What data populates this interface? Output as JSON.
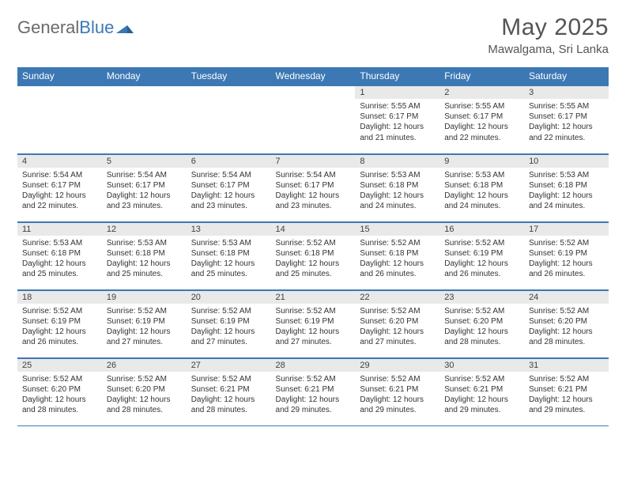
{
  "brand": {
    "part1": "General",
    "part2": "Blue"
  },
  "title": "May 2025",
  "location": "Mawalgama, Sri Lanka",
  "dayHeaders": [
    "Sunday",
    "Monday",
    "Tuesday",
    "Wednesday",
    "Thursday",
    "Friday",
    "Saturday"
  ],
  "colors": {
    "header_bg": "#3c78b4",
    "header_text": "#ffffff",
    "daynum_bg": "#e9e9e9",
    "border": "#3c78b4",
    "text": "#333333"
  },
  "firstWeekday": 4,
  "daysInMonth": 31,
  "days": {
    "1": {
      "sunrise": "5:55 AM",
      "sunset": "6:17 PM",
      "daylight": "12 hours and 21 minutes."
    },
    "2": {
      "sunrise": "5:55 AM",
      "sunset": "6:17 PM",
      "daylight": "12 hours and 22 minutes."
    },
    "3": {
      "sunrise": "5:55 AM",
      "sunset": "6:17 PM",
      "daylight": "12 hours and 22 minutes."
    },
    "4": {
      "sunrise": "5:54 AM",
      "sunset": "6:17 PM",
      "daylight": "12 hours and 22 minutes."
    },
    "5": {
      "sunrise": "5:54 AM",
      "sunset": "6:17 PM",
      "daylight": "12 hours and 23 minutes."
    },
    "6": {
      "sunrise": "5:54 AM",
      "sunset": "6:17 PM",
      "daylight": "12 hours and 23 minutes."
    },
    "7": {
      "sunrise": "5:54 AM",
      "sunset": "6:17 PM",
      "daylight": "12 hours and 23 minutes."
    },
    "8": {
      "sunrise": "5:53 AM",
      "sunset": "6:18 PM",
      "daylight": "12 hours and 24 minutes."
    },
    "9": {
      "sunrise": "5:53 AM",
      "sunset": "6:18 PM",
      "daylight": "12 hours and 24 minutes."
    },
    "10": {
      "sunrise": "5:53 AM",
      "sunset": "6:18 PM",
      "daylight": "12 hours and 24 minutes."
    },
    "11": {
      "sunrise": "5:53 AM",
      "sunset": "6:18 PM",
      "daylight": "12 hours and 25 minutes."
    },
    "12": {
      "sunrise": "5:53 AM",
      "sunset": "6:18 PM",
      "daylight": "12 hours and 25 minutes."
    },
    "13": {
      "sunrise": "5:53 AM",
      "sunset": "6:18 PM",
      "daylight": "12 hours and 25 minutes."
    },
    "14": {
      "sunrise": "5:52 AM",
      "sunset": "6:18 PM",
      "daylight": "12 hours and 25 minutes."
    },
    "15": {
      "sunrise": "5:52 AM",
      "sunset": "6:18 PM",
      "daylight": "12 hours and 26 minutes."
    },
    "16": {
      "sunrise": "5:52 AM",
      "sunset": "6:19 PM",
      "daylight": "12 hours and 26 minutes."
    },
    "17": {
      "sunrise": "5:52 AM",
      "sunset": "6:19 PM",
      "daylight": "12 hours and 26 minutes."
    },
    "18": {
      "sunrise": "5:52 AM",
      "sunset": "6:19 PM",
      "daylight": "12 hours and 26 minutes."
    },
    "19": {
      "sunrise": "5:52 AM",
      "sunset": "6:19 PM",
      "daylight": "12 hours and 27 minutes."
    },
    "20": {
      "sunrise": "5:52 AM",
      "sunset": "6:19 PM",
      "daylight": "12 hours and 27 minutes."
    },
    "21": {
      "sunrise": "5:52 AM",
      "sunset": "6:19 PM",
      "daylight": "12 hours and 27 minutes."
    },
    "22": {
      "sunrise": "5:52 AM",
      "sunset": "6:20 PM",
      "daylight": "12 hours and 27 minutes."
    },
    "23": {
      "sunrise": "5:52 AM",
      "sunset": "6:20 PM",
      "daylight": "12 hours and 28 minutes."
    },
    "24": {
      "sunrise": "5:52 AM",
      "sunset": "6:20 PM",
      "daylight": "12 hours and 28 minutes."
    },
    "25": {
      "sunrise": "5:52 AM",
      "sunset": "6:20 PM",
      "daylight": "12 hours and 28 minutes."
    },
    "26": {
      "sunrise": "5:52 AM",
      "sunset": "6:20 PM",
      "daylight": "12 hours and 28 minutes."
    },
    "27": {
      "sunrise": "5:52 AM",
      "sunset": "6:21 PM",
      "daylight": "12 hours and 28 minutes."
    },
    "28": {
      "sunrise": "5:52 AM",
      "sunset": "6:21 PM",
      "daylight": "12 hours and 29 minutes."
    },
    "29": {
      "sunrise": "5:52 AM",
      "sunset": "6:21 PM",
      "daylight": "12 hours and 29 minutes."
    },
    "30": {
      "sunrise": "5:52 AM",
      "sunset": "6:21 PM",
      "daylight": "12 hours and 29 minutes."
    },
    "31": {
      "sunrise": "5:52 AM",
      "sunset": "6:21 PM",
      "daylight": "12 hours and 29 minutes."
    }
  },
  "labels": {
    "sunrise": "Sunrise:",
    "sunset": "Sunset:",
    "daylight": "Daylight:"
  }
}
